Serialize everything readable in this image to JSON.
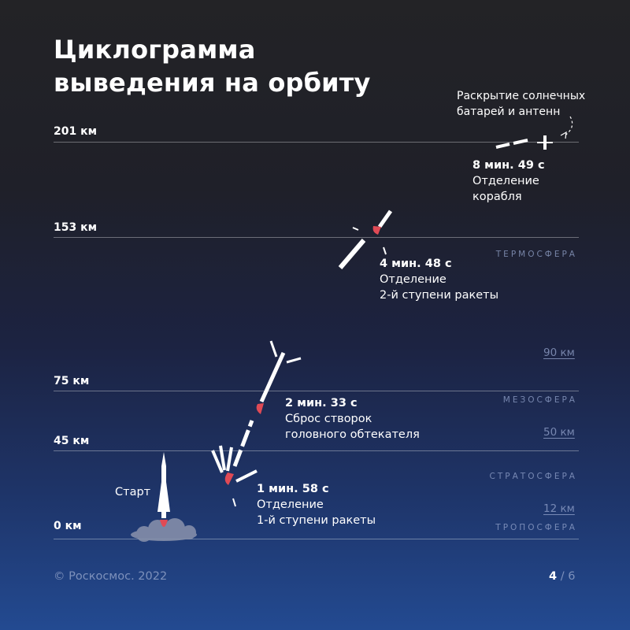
{
  "title": {
    "line1": "Циклограмма",
    "line2": "выведения на орбиту"
  },
  "altitudes": [
    {
      "label": "201 км",
      "value_km": 201
    },
    {
      "label": "153 км",
      "value_km": 153
    },
    {
      "label": "75 км",
      "value_km": 75
    },
    {
      "label": "45 км",
      "value_km": 45
    },
    {
      "label": "0 км",
      "value_km": 0
    }
  ],
  "layers": [
    {
      "name": "ТЕРМОСФЕРА"
    },
    {
      "name": "МЕЗОСФЕРА",
      "boundary_top": "90 км"
    },
    {
      "name": "СТРАТОСФЕРА",
      "boundary_top": "50 км"
    },
    {
      "name": "ТРОПОСФЕРА",
      "boundary_top": "12 км"
    }
  ],
  "events": {
    "start": {
      "label": "Старт"
    },
    "stage1": {
      "time": "1 мин. 58 с",
      "line1": "Отделение",
      "line2": "1-й ступени ракеты"
    },
    "fairing": {
      "time": "2 мин. 33 с",
      "line1": "Сброс створок",
      "line2": "головного обтекателя"
    },
    "stage2": {
      "time": "4 мин. 48 с",
      "line1": "Отделение",
      "line2": "2-й ступени ракеты"
    },
    "ship": {
      "time": "8 мин. 49 с",
      "line1": "Отделение",
      "line2": "корабля"
    },
    "panels": {
      "line1": "Раскрытие солнечных",
      "line2": "батарей и антенн"
    }
  },
  "footer": {
    "copyright": "© Роскосмос. 2022",
    "page_current": "4",
    "page_separator": "/",
    "page_total": "6"
  },
  "colors": {
    "flame": "#e04a55",
    "background_top": "#232326",
    "background_bottom": "#234a91"
  }
}
